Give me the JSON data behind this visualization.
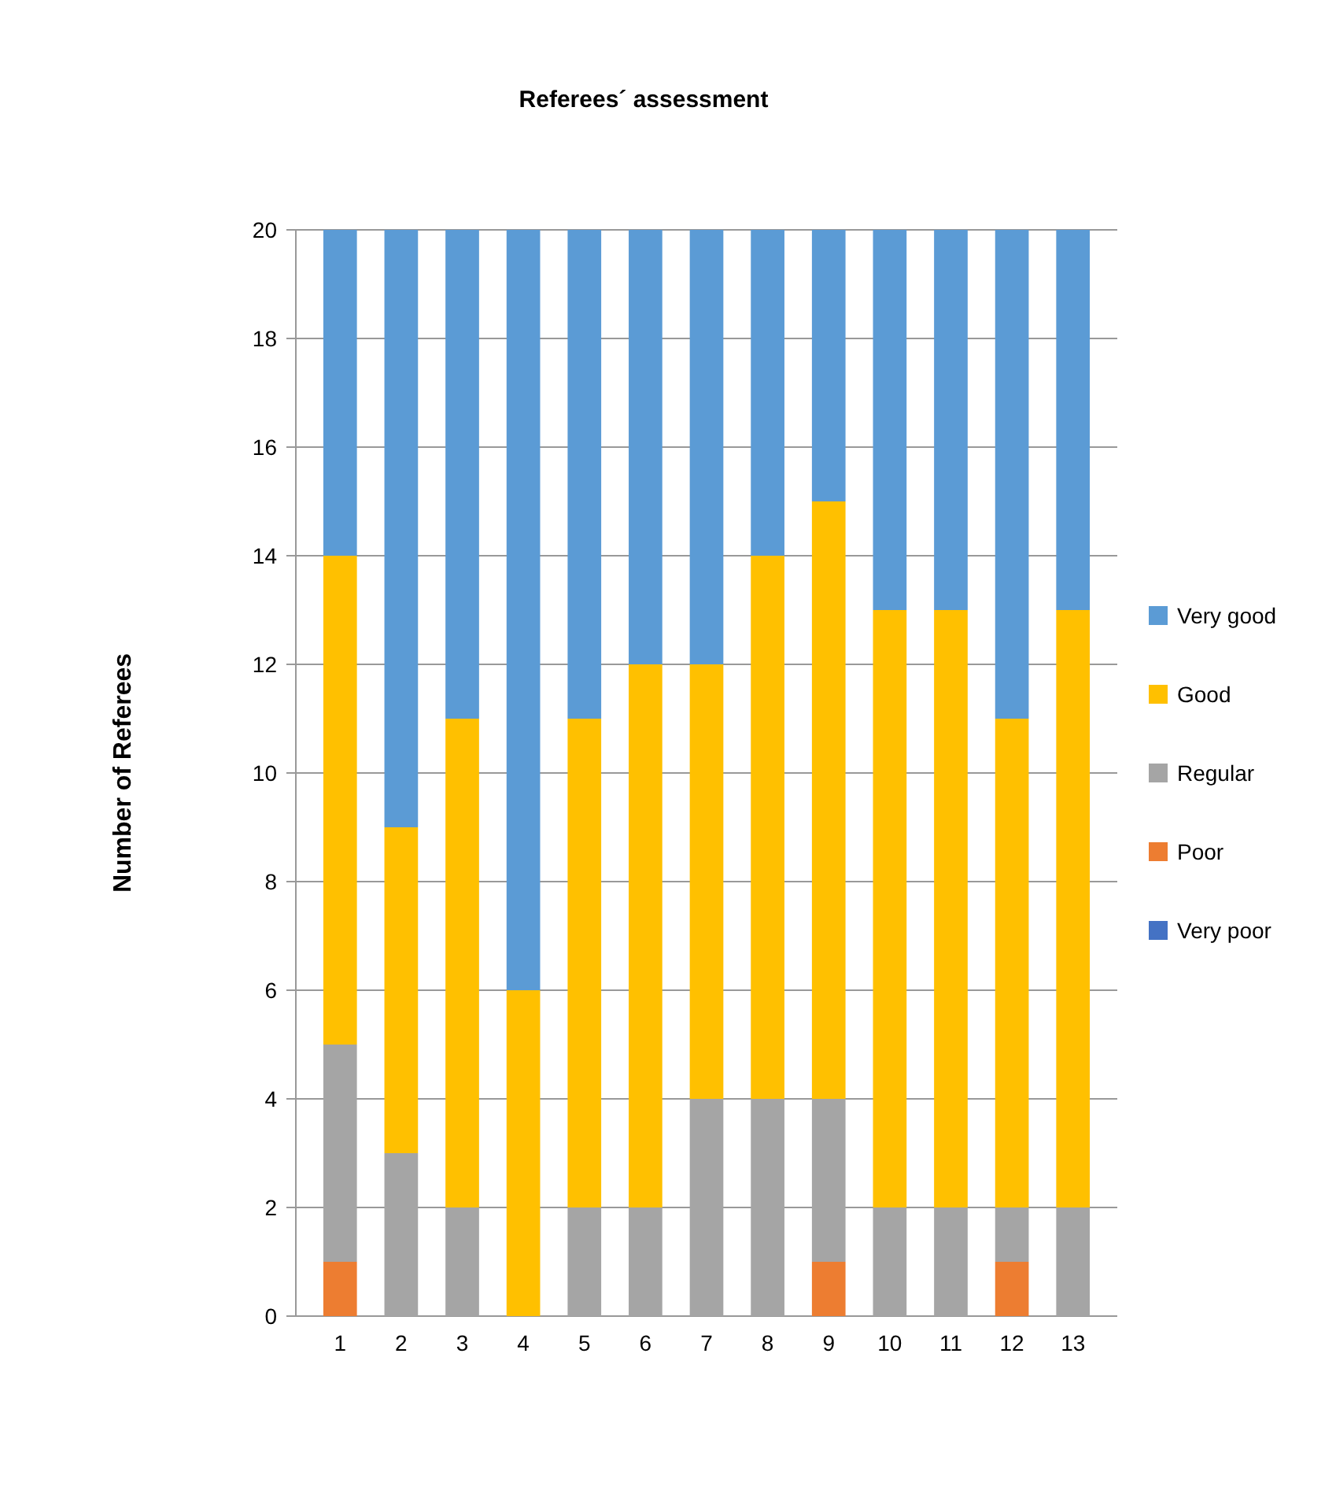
{
  "chart_data": {
    "type": "bar",
    "title": "Referees´ assessment",
    "ylabel": "Number of Referees",
    "stacked": true,
    "grid": "y",
    "legend": "right",
    "categories": [
      "1",
      "2",
      "3",
      "4",
      "5",
      "6",
      "7",
      "8",
      "9",
      "10",
      "11",
      "12",
      "13"
    ],
    "ylim": [
      0,
      20
    ],
    "yticks": [
      0,
      2,
      4,
      6,
      8,
      10,
      12,
      14,
      16,
      18,
      20
    ],
    "series": [
      {
        "name": "Very poor",
        "color": "#4472c4",
        "values": [
          0,
          0,
          0,
          0,
          0,
          0,
          0,
          0,
          0,
          0,
          0,
          0,
          0
        ]
      },
      {
        "name": "Poor",
        "color": "#ed7d31",
        "values": [
          1,
          0,
          0,
          0,
          0,
          0,
          0,
          0,
          1,
          0,
          0,
          1,
          0
        ]
      },
      {
        "name": "Regular",
        "color": "#a5a5a5",
        "values": [
          4,
          3,
          2,
          0,
          2,
          2,
          4,
          4,
          3,
          2,
          2,
          1,
          2
        ]
      },
      {
        "name": "Good",
        "color": "#ffc000",
        "values": [
          9,
          6,
          9,
          6,
          9,
          10,
          8,
          10,
          11,
          11,
          11,
          9,
          11
        ]
      },
      {
        "name": "Very good",
        "color": "#5b9bd5",
        "values": [
          6,
          11,
          9,
          14,
          9,
          8,
          8,
          6,
          5,
          7,
          7,
          9,
          7
        ]
      }
    ]
  }
}
